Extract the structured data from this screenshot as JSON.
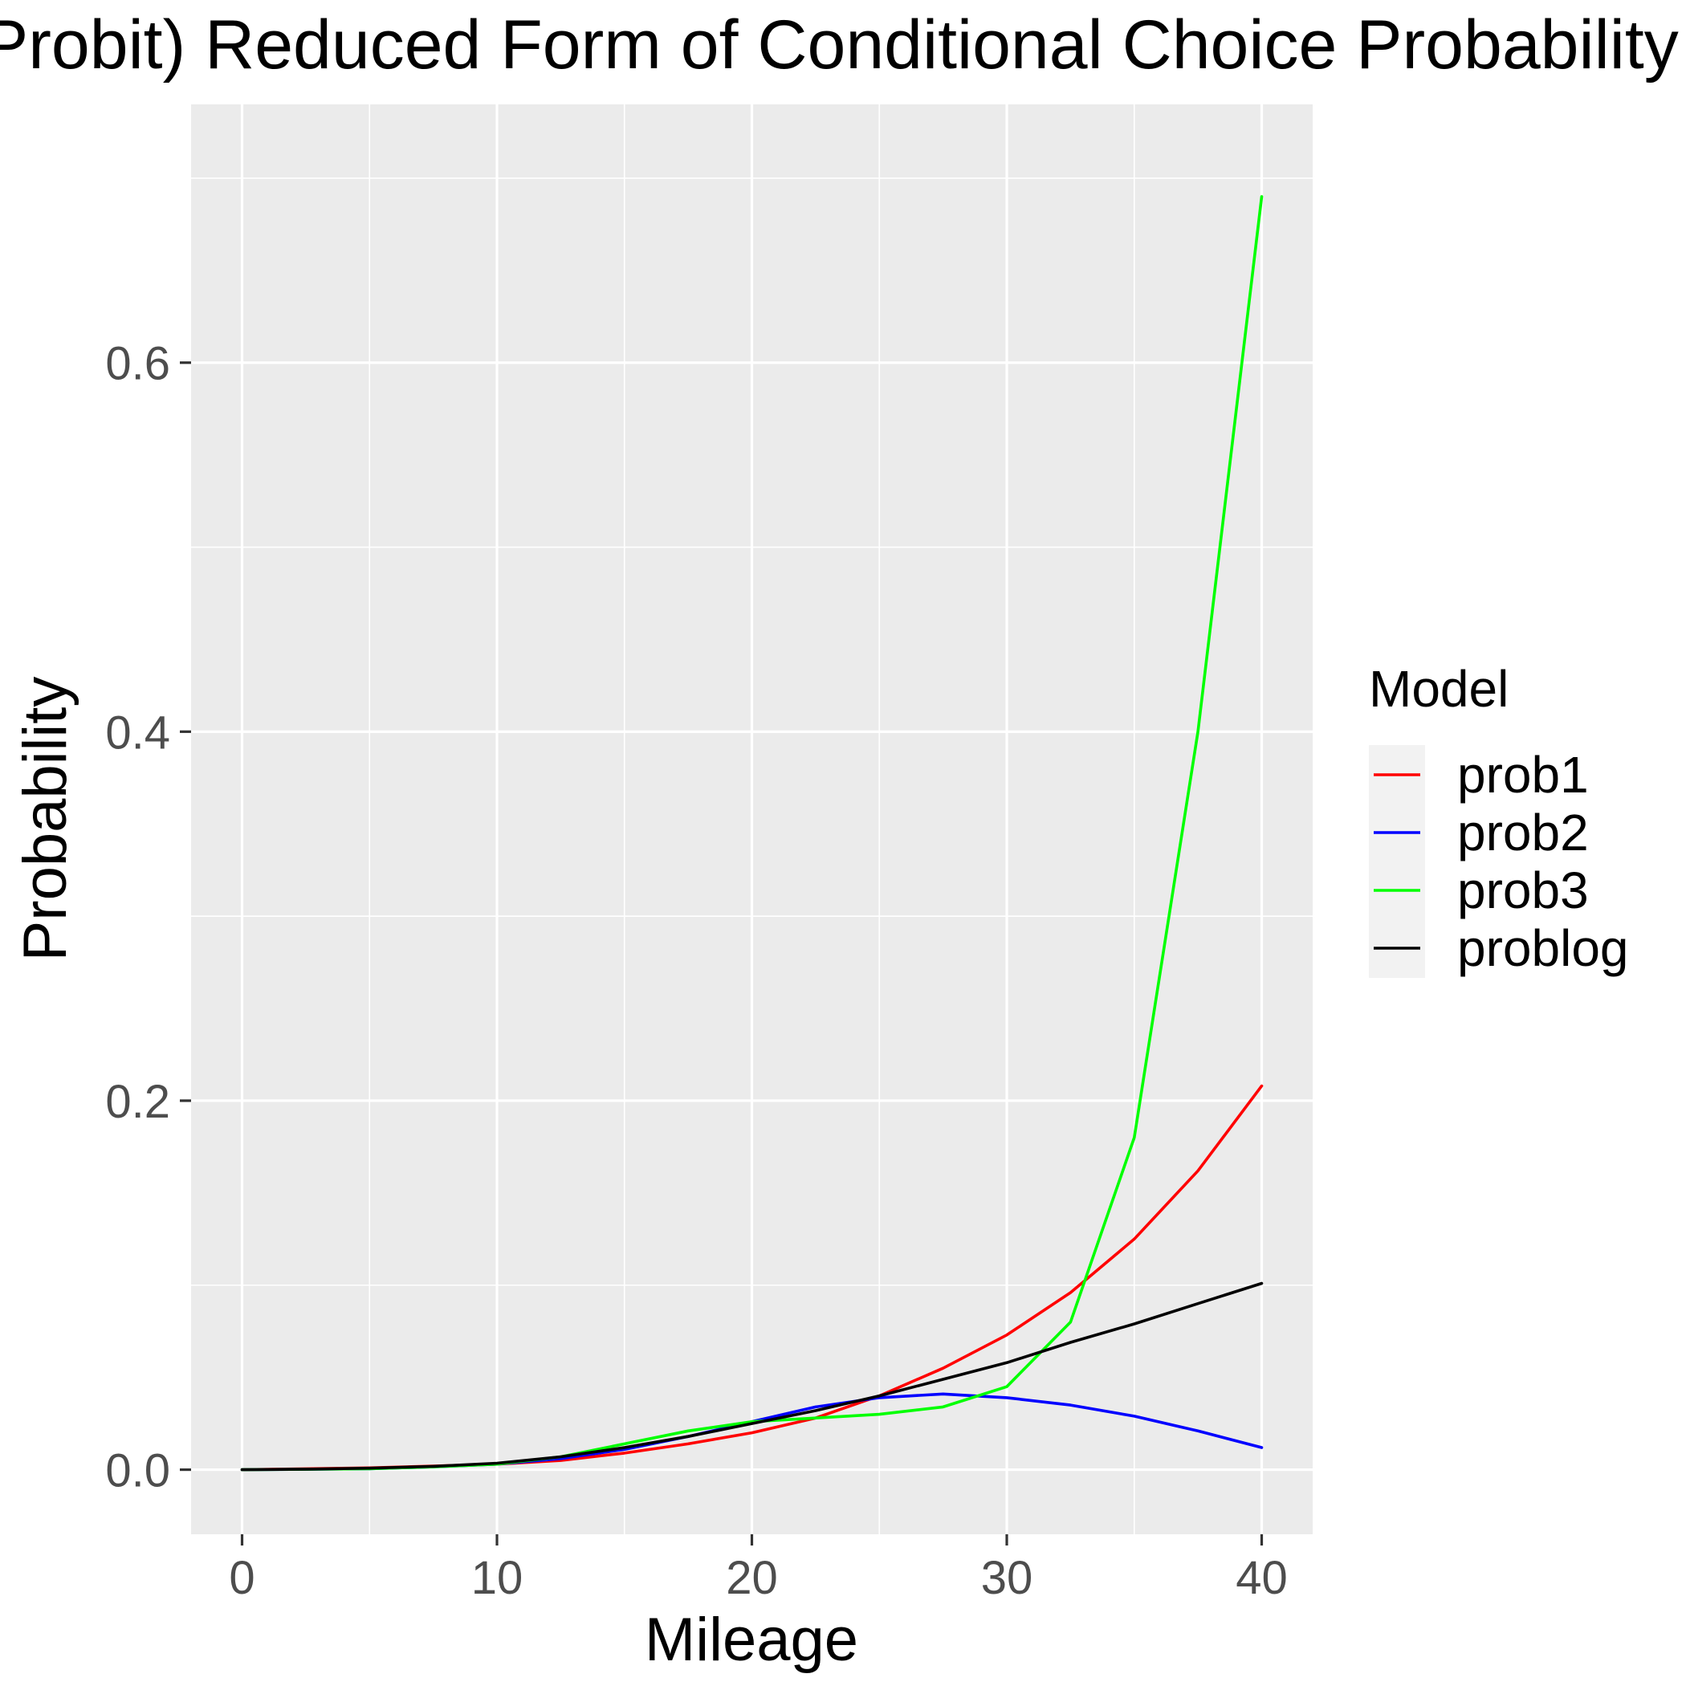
{
  "chart_data": {
    "type": "line",
    "title": "(Probit) Reduced Form of Conditional Choice Probability",
    "xlabel": "Mileage",
    "ylabel": "Probability",
    "xlim": [
      -2,
      42
    ],
    "ylim": [
      -0.035,
      0.74
    ],
    "x_ticks": [
      0,
      10,
      20,
      30,
      40
    ],
    "x_tick_labels": [
      "0",
      "10",
      "20",
      "30",
      "40"
    ],
    "x_minor_ticks": [
      5,
      15,
      25,
      35
    ],
    "y_ticks": [
      0.0,
      0.2,
      0.4,
      0.6
    ],
    "y_tick_labels": [
      "0.0",
      "0.2",
      "0.4",
      "0.6"
    ],
    "y_minor_ticks": [
      0.1,
      0.3,
      0.5,
      0.7
    ],
    "grid": true,
    "legend": {
      "title": "Model",
      "position": "right"
    },
    "x": [
      0,
      2.5,
      5,
      7.5,
      10,
      12.5,
      15,
      17.5,
      20,
      22.5,
      25,
      27.5,
      30,
      32.5,
      35,
      37.5,
      40
    ],
    "series": [
      {
        "name": "prob1",
        "color": "#ff0000",
        "values": [
          0.0,
          0.0005,
          0.001,
          0.002,
          0.003,
          0.005,
          0.009,
          0.014,
          0.02,
          0.028,
          0.04,
          0.055,
          0.073,
          0.096,
          0.125,
          0.162,
          0.208
        ]
      },
      {
        "name": "prob2",
        "color": "#0000ff",
        "values": [
          0.0,
          0.0002,
          0.0005,
          0.0015,
          0.003,
          0.006,
          0.011,
          0.018,
          0.026,
          0.034,
          0.039,
          0.041,
          0.039,
          0.035,
          0.029,
          0.021,
          0.012
        ]
      },
      {
        "name": "prob3",
        "color": "#00ff00",
        "values": [
          0.0,
          0.0002,
          0.0005,
          0.0015,
          0.003,
          0.007,
          0.014,
          0.021,
          0.026,
          0.028,
          0.03,
          0.034,
          0.045,
          0.08,
          0.18,
          0.4,
          0.69
        ]
      },
      {
        "name": "problog",
        "color": "#000000",
        "values": [
          0.0,
          0.0003,
          0.0008,
          0.0018,
          0.0035,
          0.007,
          0.012,
          0.018,
          0.025,
          0.032,
          0.04,
          0.049,
          0.058,
          0.069,
          0.079,
          0.09,
          0.101
        ]
      }
    ]
  }
}
